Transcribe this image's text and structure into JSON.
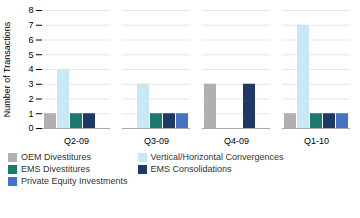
{
  "chart_data": {
    "type": "bar",
    "categories": [
      "Q2-09",
      "Q3-09",
      "Q4-09",
      "Q1-10"
    ],
    "series": [
      {
        "name": "OEM Divestitures",
        "color": "#b0b0b0",
        "values": [
          1,
          0,
          3,
          1
        ]
      },
      {
        "name": "Vertical/Horizontal Convergences",
        "color": "#c8e8f5",
        "values": [
          4,
          3,
          0,
          7
        ]
      },
      {
        "name": "EMS Divestitures",
        "color": "#1a7a6e",
        "values": [
          1,
          1,
          0,
          1
        ]
      },
      {
        "name": "EMS Consolidations",
        "color": "#1f3864",
        "values": [
          1,
          1,
          3,
          1
        ]
      },
      {
        "name": "Private Equity Investments",
        "color": "#4472c4",
        "values": [
          0,
          1,
          0,
          1
        ]
      }
    ],
    "ylabel": "Number of Transactions",
    "ylim": [
      0,
      8
    ],
    "yticks": [
      0,
      1,
      2,
      3,
      4,
      5,
      6,
      7,
      8
    ],
    "grid": true,
    "legend": "bottom"
  }
}
